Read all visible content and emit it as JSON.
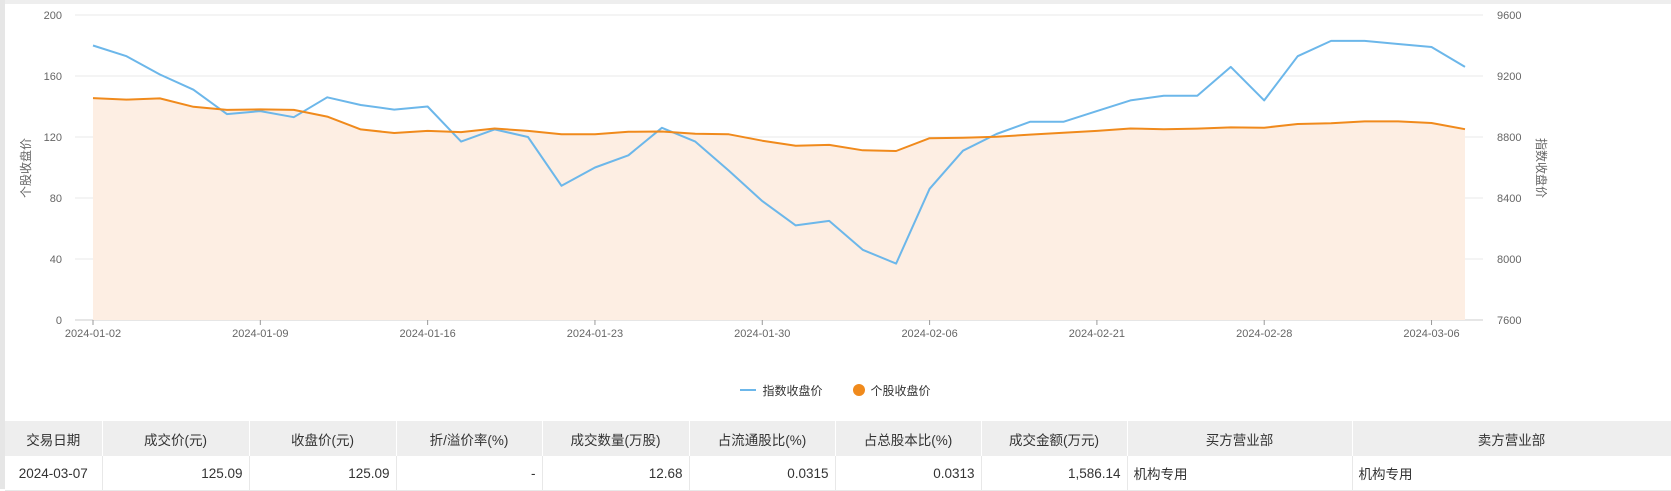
{
  "chart_data": {
    "type": "line",
    "ylabel": "个股收盘价",
    "y2label": "指数收盘价",
    "ylim": [
      0,
      200
    ],
    "y2lim": [
      7600,
      9600
    ],
    "yticks": [
      "0",
      "40",
      "80",
      "120",
      "160",
      "200"
    ],
    "y2ticks": [
      "7600",
      "8000",
      "8400",
      "8800",
      "9200",
      "9600"
    ],
    "xticks": [
      "2024-01-02",
      "2024-01-09",
      "2024-01-16",
      "2024-01-23",
      "2024-01-30",
      "2024-02-06",
      "2024-02-21",
      "2024-02-28",
      "2024-03-06"
    ],
    "dates": [
      "2024-01-02",
      "2024-01-03",
      "2024-01-04",
      "2024-01-05",
      "2024-01-08",
      "2024-01-09",
      "2024-01-10",
      "2024-01-11",
      "2024-01-12",
      "2024-01-15",
      "2024-01-16",
      "2024-01-17",
      "2024-01-18",
      "2024-01-19",
      "2024-01-22",
      "2024-01-23",
      "2024-01-24",
      "2024-01-25",
      "2024-01-26",
      "2024-01-29",
      "2024-01-30",
      "2024-01-31",
      "2024-02-01",
      "2024-02-02",
      "2024-02-05",
      "2024-02-06",
      "2024-02-07",
      "2024-02-08",
      "2024-02-19",
      "2024-02-20",
      "2024-02-21",
      "2024-02-22",
      "2024-02-23",
      "2024-02-26",
      "2024-02-27",
      "2024-02-28",
      "2024-02-29",
      "2024-03-01",
      "2024-03-04",
      "2024-03-05",
      "2024-03-06",
      "2024-03-07"
    ],
    "series": [
      {
        "name": "指数收盘价",
        "axis": "right",
        "color": "#6cb7ea",
        "values": [
          9400,
          9330,
          9210,
          9110,
          8950,
          8970,
          8930,
          9060,
          9010,
          8980,
          9000,
          8770,
          8850,
          8800,
          8480,
          8600,
          8680,
          8860,
          8770,
          8580,
          8380,
          8220,
          8250,
          8060,
          7970,
          8460,
          8710,
          8820,
          8900,
          8900,
          8970,
          9040,
          9070,
          9070,
          9260,
          9040,
          9330,
          9430,
          9430,
          9410,
          9390,
          9260
        ]
      },
      {
        "name": "个股收盘价",
        "axis": "left",
        "color": "#f08a1c",
        "fill": "#fdeee3",
        "values": [
          145.5,
          144.5,
          145.3,
          139.8,
          137.8,
          138.1,
          137.8,
          133.4,
          125.0,
          122.6,
          124.0,
          123.2,
          125.6,
          124.0,
          121.8,
          121.8,
          123.4,
          123.6,
          122.1,
          121.8,
          117.6,
          114.3,
          114.8,
          111.3,
          110.8,
          119.2,
          119.5,
          120.1,
          121.6,
          122.8,
          124.0,
          125.6,
          125.1,
          125.5,
          126.3,
          126.1,
          128.5,
          129.0,
          130.2,
          130.2,
          129.2,
          125.09
        ]
      }
    ]
  },
  "legend": {
    "index_label": "指数收盘价",
    "stock_label": "个股收盘价"
  },
  "table": {
    "headers": [
      "交易日期",
      "成交价(元)",
      "收盘价(元)",
      "折/溢价率(%)",
      "成交数量(万股)",
      "占流通股比(%)",
      "占总股本比(%)",
      "成交金额(万元)",
      "买方营业部",
      "卖方营业部"
    ],
    "rows": [
      [
        "2024-03-07",
        "125.09",
        "125.09",
        "-",
        "12.68",
        "0.0315",
        "0.0313",
        "1,586.14",
        "机构专用",
        "机构专用"
      ]
    ]
  }
}
